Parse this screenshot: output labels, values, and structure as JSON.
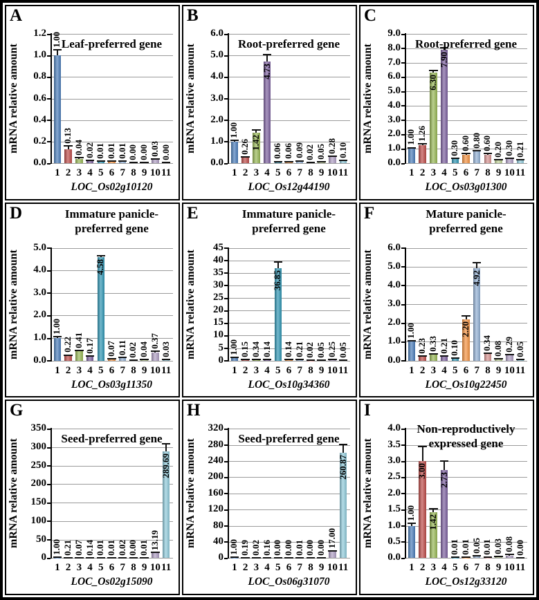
{
  "figure": {
    "y_axis_title": "mRNA relative amount",
    "background": "#ffffff",
    "border_color": "#000000",
    "gridline_color": "#9a9a9a",
    "axis_color": "#000000",
    "error_bar_color": "#111111",
    "bar_colors": [
      "#4F81BD",
      "#C0504D",
      "#9BBB59",
      "#8064A2",
      "#3499B7",
      "#F79646",
      "#95B3D7",
      "#D99694",
      "#C3D69B",
      "#B3A2C7",
      "#93CDDD"
    ]
  },
  "chart_data": [
    {
      "type": "bar",
      "panel": "A",
      "title": "Leaf-preferred gene",
      "title_lines": [
        "Leaf-preferred gene"
      ],
      "gene": "LOC_Os02g10120",
      "ylabel": "mRNA relative amount",
      "categories": [
        "1",
        "2",
        "3",
        "4",
        "5",
        "6",
        "7",
        "8",
        "9",
        "10",
        "11"
      ],
      "values": [
        1.0,
        0.13,
        0.04,
        0.02,
        0.01,
        0.01,
        0.01,
        0.0,
        0.0,
        0.03,
        0.0
      ],
      "value_labels": [
        "1.00",
        "0.13",
        "0.04",
        "0.02",
        "0.01",
        "0.01",
        "0.01",
        "0.00",
        "0.00",
        "0.03",
        "0.00"
      ],
      "errors": [
        0.05,
        0.03,
        0.01,
        0.008,
        0.008,
        0.008,
        0.008,
        0.006,
        0.006,
        0.01,
        0.006
      ],
      "ylim": [
        0,
        1.2
      ],
      "ytick_step": 0.2,
      "ytick_decimals": 1,
      "grid": true
    },
    {
      "type": "bar",
      "panel": "B",
      "title": "Root-preferred gene",
      "title_lines": [
        "Root-preferred gene"
      ],
      "gene": "LOC_Os12g44190",
      "ylabel": "mRNA relative amount",
      "categories": [
        "1",
        "2",
        "3",
        "4",
        "5",
        "6",
        "7",
        "8",
        "9",
        "10",
        "11"
      ],
      "values": [
        1.0,
        0.26,
        1.42,
        4.73,
        0.06,
        0.06,
        0.09,
        0.02,
        0.05,
        0.28,
        0.1
      ],
      "value_labels": [
        "1.00",
        "0.26",
        "1.42",
        "4.73",
        "0.06",
        "0.06",
        "0.09",
        "0.02",
        "0.05",
        "0.28",
        "0.10"
      ],
      "errors": [
        0.06,
        0.04,
        0.12,
        0.3,
        0.02,
        0.02,
        0.02,
        0.01,
        0.02,
        0.04,
        0.02
      ],
      "ylim": [
        0,
        6.0
      ],
      "ytick_step": 1.0,
      "ytick_decimals": 1,
      "grid": true
    },
    {
      "type": "bar",
      "panel": "C",
      "title": "Root-preferred gene",
      "title_lines": [
        "Root-preferred gene"
      ],
      "gene": "LOC_Os03g01300",
      "ylabel": "mRNA relative amount",
      "categories": [
        "1",
        "2",
        "3",
        "4",
        "5",
        "6",
        "7",
        "8",
        "9",
        "10",
        "11"
      ],
      "values": [
        1.0,
        1.26,
        6.3,
        7.9,
        0.3,
        0.6,
        0.8,
        0.6,
        0.2,
        0.3,
        0.21
      ],
      "value_labels": [
        "1.00",
        "1.26",
        "6.30",
        "7.90",
        "0.30",
        "0.60",
        "0.80",
        "0.60",
        "0.20",
        "0.30",
        "0.21"
      ],
      "errors": [
        0.08,
        0.1,
        0.15,
        0.12,
        0.04,
        0.05,
        0.06,
        0.05,
        0.03,
        0.04,
        0.03
      ],
      "ylim": [
        0,
        9.0
      ],
      "ytick_step": 1.0,
      "ytick_decimals": 1,
      "grid": true
    },
    {
      "type": "bar",
      "panel": "D",
      "title": "Immature panicle-preferred gene",
      "title_lines": [
        "Immature panicle-",
        "preferred gene"
      ],
      "gene": "LOC_Os03g11350",
      "ylabel": "mRNA relative amount",
      "categories": [
        "1",
        "2",
        "3",
        "4",
        "5",
        "6",
        "7",
        "8",
        "9",
        "10",
        "11"
      ],
      "values": [
        1.0,
        0.22,
        0.41,
        0.17,
        4.58,
        0.07,
        0.11,
        0.02,
        0.04,
        0.37,
        0.03
      ],
      "value_labels": [
        "1.00",
        "0.22",
        "0.41",
        "0.17",
        "4.58",
        "0.07",
        "0.11",
        "0.02",
        "0.04",
        "0.37",
        "0.03"
      ],
      "errors": [
        0.06,
        0.03,
        0.04,
        0.02,
        0.06,
        0.01,
        0.02,
        0.01,
        0.01,
        0.04,
        0.01
      ],
      "ylim": [
        0,
        5.0
      ],
      "ytick_step": 1.0,
      "ytick_decimals": 1,
      "grid": true
    },
    {
      "type": "bar",
      "panel": "E",
      "title": "Immature panicle-preferred gene",
      "title_lines": [
        "Immature panicle-",
        "preferred gene"
      ],
      "gene": "LOC_Os10g34360",
      "ylabel": "mRNA relative amount",
      "categories": [
        "1",
        "2",
        "3",
        "4",
        "5",
        "6",
        "7",
        "8",
        "9",
        "10",
        "11"
      ],
      "values": [
        1.0,
        0.15,
        0.34,
        0.14,
        36.85,
        0.14,
        0.21,
        0.02,
        0.05,
        0.25,
        0.05
      ],
      "value_labels": [
        "1.00",
        "0.15",
        "0.34",
        "0.14",
        "36.85",
        "0.14",
        "0.21",
        "0.02",
        "0.05",
        "0.25",
        "0.05"
      ],
      "errors": [
        0.3,
        0.2,
        0.2,
        0.2,
        2.5,
        0.2,
        0.2,
        0.1,
        0.1,
        0.2,
        0.1
      ],
      "ylim": [
        0,
        45
      ],
      "ytick_step": 5,
      "ytick_decimals": 0,
      "grid": true
    },
    {
      "type": "bar",
      "panel": "F",
      "title": "Mature panicle-preferred gene",
      "title_lines": [
        "Mature panicle-",
        "preferred gene"
      ],
      "gene": "LOC_Os10g22450",
      "ylabel": "mRNA relative amount",
      "categories": [
        "1",
        "2",
        "3",
        "4",
        "5",
        "6",
        "7",
        "8",
        "9",
        "10",
        "11"
      ],
      "values": [
        1.0,
        0.23,
        0.33,
        0.21,
        0.1,
        2.2,
        4.92,
        0.34,
        0.08,
        0.29,
        0.05
      ],
      "value_labels": [
        "1.00",
        "0.23",
        "0.33",
        "0.21",
        "0.10",
        "2.20",
        "4.92",
        "0.34",
        "0.08",
        "0.29",
        "0.05"
      ],
      "errors": [
        0.07,
        0.03,
        0.04,
        0.03,
        0.02,
        0.18,
        0.3,
        0.04,
        0.02,
        0.04,
        0.01
      ],
      "ylim": [
        0,
        6.0
      ],
      "ytick_step": 1.0,
      "ytick_decimals": 1,
      "grid": true
    },
    {
      "type": "bar",
      "panel": "G",
      "title": "Seed-preferred gene",
      "title_lines": [
        "Seed-preferred gene"
      ],
      "gene": "LOC_Os02g15090",
      "ylabel": "mRNA relative amount",
      "categories": [
        "1",
        "2",
        "3",
        "4",
        "5",
        "6",
        "7",
        "8",
        "9",
        "10",
        "11"
      ],
      "values": [
        1.0,
        0.21,
        0.07,
        0.14,
        0.01,
        0.01,
        0.02,
        0.0,
        0.01,
        13.19,
        289.69
      ],
      "value_labels": [
        "1.00",
        "0.21",
        "0.07",
        "0.14",
        "0.01",
        "0.01",
        "0.02",
        "0.00",
        "0.01",
        "13.19",
        "289.69"
      ],
      "errors": [
        1,
        1,
        1,
        1,
        1,
        1,
        1,
        1,
        1,
        1.5,
        20
      ],
      "ylim": [
        0,
        350
      ],
      "ytick_step": 50,
      "ytick_decimals": 0,
      "grid": true
    },
    {
      "type": "bar",
      "panel": "H",
      "title": "Seed-preferred gene",
      "title_lines": [
        "Seed-preferred gene"
      ],
      "gene": "LOC_Os06g31070",
      "ylabel": "mRNA relative amount",
      "categories": [
        "1",
        "2",
        "3",
        "4",
        "5",
        "6",
        "7",
        "8",
        "9",
        "10",
        "11"
      ],
      "values": [
        1.0,
        0.19,
        0.02,
        0.16,
        0.0,
        0.0,
        0.01,
        0.0,
        0.0,
        17.0,
        260.87
      ],
      "value_labels": [
        "1.00",
        "0.19",
        "0.02",
        "0.16",
        "0.00",
        "0.00",
        "0.01",
        "0.00",
        "0.00",
        "17.00",
        "260.87"
      ],
      "errors": [
        1,
        1,
        1,
        1,
        1,
        1,
        1,
        1,
        1,
        1.5,
        20
      ],
      "ylim": [
        0,
        320
      ],
      "ytick_step": 40,
      "ytick_decimals": 0,
      "grid": true
    },
    {
      "type": "bar",
      "panel": "I",
      "title": "Non-reproductively expressed gene",
      "title_lines": [
        "Non-reproductively",
        "expressed gene"
      ],
      "gene": "LOC_Os12g33120",
      "ylabel": "mRNA relative amount",
      "categories": [
        "1",
        "2",
        "3",
        "4",
        "5",
        "6",
        "7",
        "8",
        "9",
        "10",
        "11"
      ],
      "values": [
        1.0,
        3.0,
        1.42,
        2.73,
        0.01,
        0.01,
        0.05,
        0.01,
        0.03,
        0.08,
        0.0
      ],
      "value_labels": [
        "1.00",
        "3.00",
        "1.42",
        "2.73",
        "0.01",
        "0.01",
        "0.05",
        "0.01",
        "0.03",
        "0.08",
        "0.00"
      ],
      "errors": [
        0.08,
        0.45,
        0.1,
        0.28,
        0.01,
        0.01,
        0.03,
        0.01,
        0.01,
        0.03,
        0.01
      ],
      "ylim": [
        0,
        4.0
      ],
      "ytick_step": 0.5,
      "ytick_decimals": 1,
      "grid": true
    }
  ]
}
